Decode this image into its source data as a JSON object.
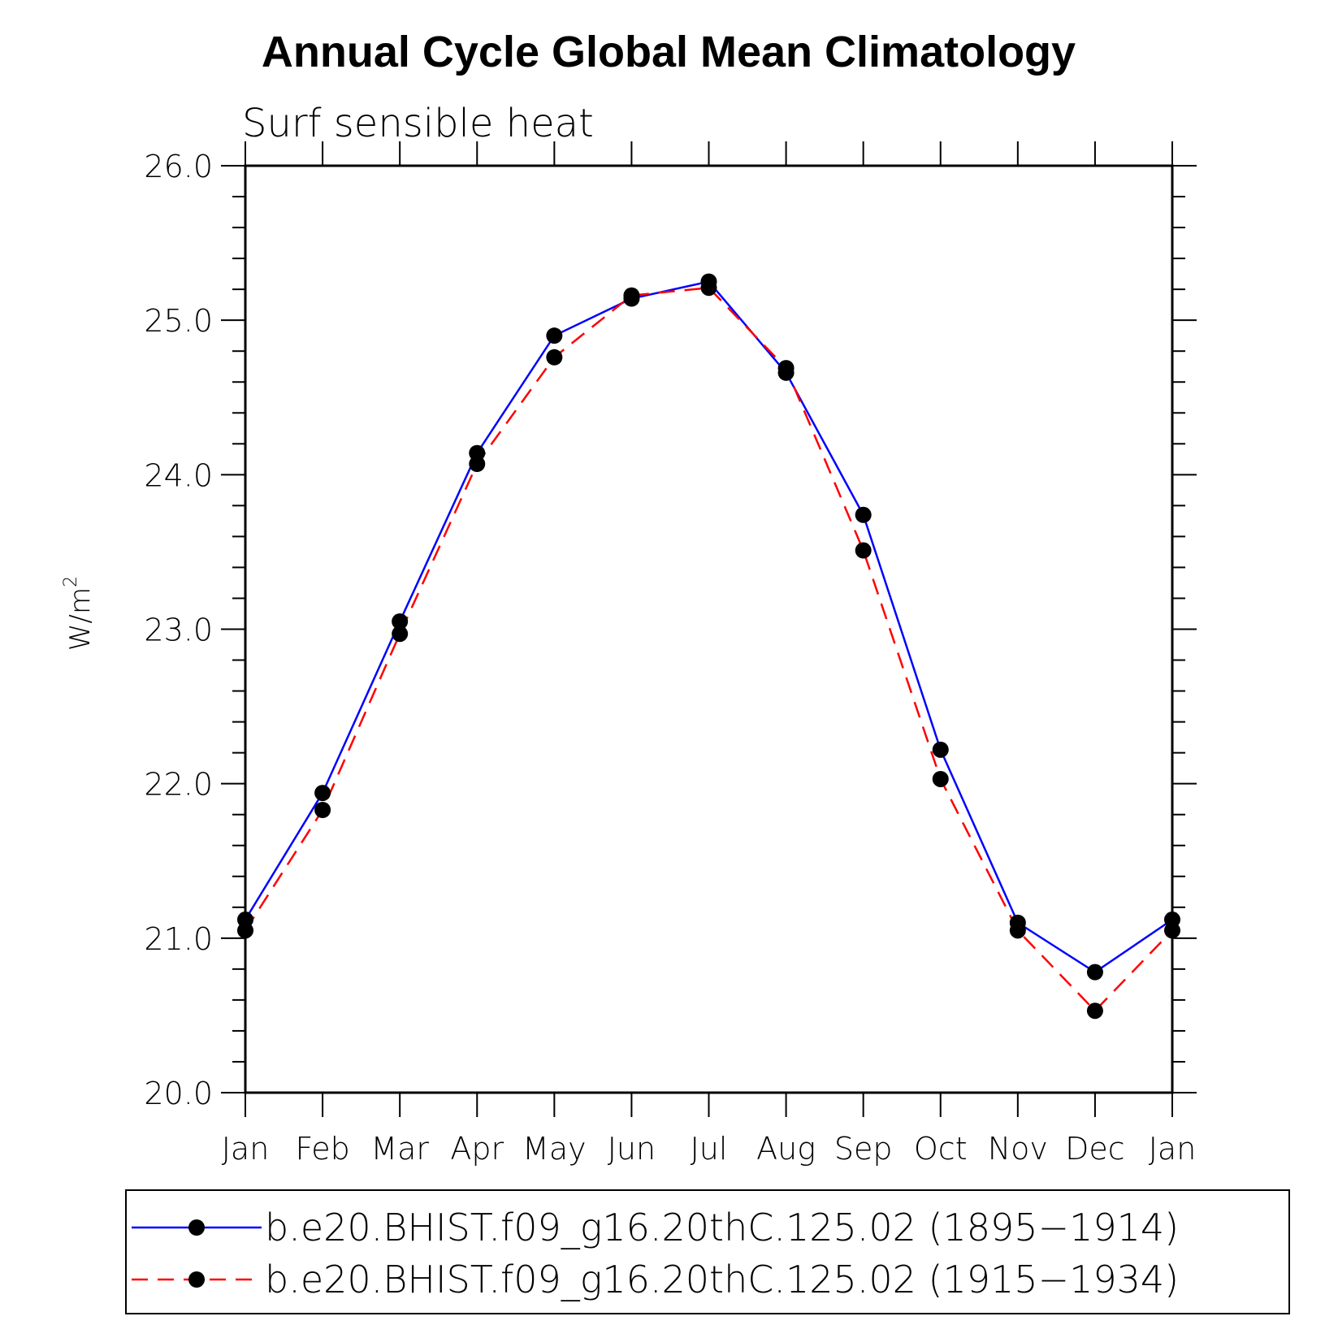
{
  "chart_data": {
    "type": "line",
    "title": "Annual Cycle Global Mean Climatology",
    "subtitle": "Surf sensible heat",
    "xlabel": "",
    "ylabel": "W/m",
    "ylabel_superscript": "2",
    "ylim": [
      20.0,
      26.0
    ],
    "yticks": [
      "20.0",
      "21.0",
      "22.0",
      "23.0",
      "24.0",
      "25.0",
      "26.0"
    ],
    "categories": [
      "Jan",
      "Feb",
      "Mar",
      "Apr",
      "May",
      "Jun",
      "Jul",
      "Aug",
      "Sep",
      "Oct",
      "Nov",
      "Dec",
      "Jan"
    ],
    "series": [
      {
        "name": "b.e20.BHIST.f09_g16.20thC.125.02 (1895−1914)",
        "color": "#0000ff",
        "dash": "solid",
        "values": [
          21.12,
          21.94,
          23.05,
          24.14,
          24.9,
          25.14,
          25.25,
          24.66,
          23.74,
          22.22,
          21.1,
          20.78,
          21.12
        ]
      },
      {
        "name": "b.e20.BHIST.f09_g16.20thC.125.02 (1915−1934)",
        "color": "#ff0000",
        "dash": "dashed",
        "values": [
          21.05,
          21.83,
          22.97,
          24.07,
          24.76,
          25.16,
          25.21,
          24.69,
          23.51,
          22.03,
          21.05,
          20.53,
          21.05
        ]
      }
    ],
    "legend_position": "bottom"
  }
}
